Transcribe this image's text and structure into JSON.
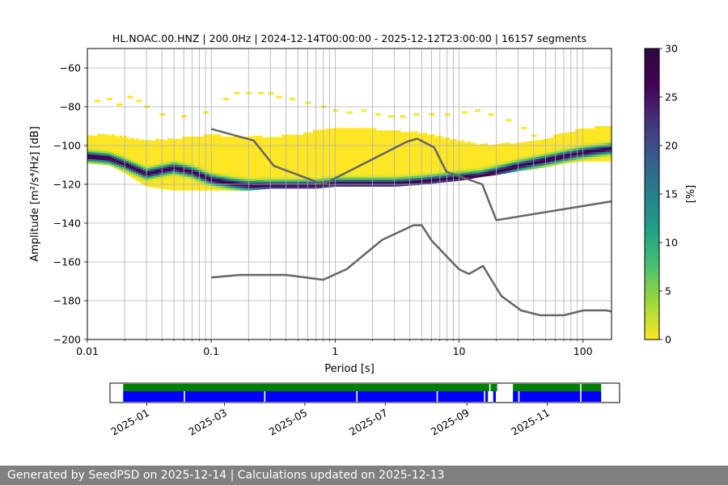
{
  "title": "HL.NOAC.00.HNZ | 200.0Hz | 2024-12-14T00:00:00 - 2025-12-12T23:00:00 | 16157 segments",
  "footer": "Generated by SeedPSD on 2025-12-14 | Calculations updated on 2025-12-13",
  "chart_data": {
    "type": "heatmap",
    "title": "HL.NOAC.00.HNZ | 200.0Hz | 2024-12-14T00:00:00 - 2025-12-12T23:00:00 | 16157 segments",
    "xlabel": "Period [s]",
    "ylabel": "Amplitude [m²/s⁴/Hz] [dB]",
    "xscale": "log",
    "xlim": [
      0.01,
      170
    ],
    "ylim": [
      -200,
      -50
    ],
    "xticks": [
      {
        "value": 0.01,
        "label": "0.01"
      },
      {
        "value": 0.1,
        "label": "0.1"
      },
      {
        "value": 1,
        "label": "1"
      },
      {
        "value": 10,
        "label": "10"
      },
      {
        "value": 100,
        "label": "100"
      }
    ],
    "yticks": [
      {
        "value": -200,
        "label": "−200"
      },
      {
        "value": -180,
        "label": "−180"
      },
      {
        "value": -160,
        "label": "−160"
      },
      {
        "value": -140,
        "label": "−140"
      },
      {
        "value": -120,
        "label": "−120"
      },
      {
        "value": -100,
        "label": "−100"
      },
      {
        "value": -80,
        "label": "−80"
      },
      {
        "value": -60,
        "label": "−60"
      }
    ],
    "colorbar": {
      "label": "[%]",
      "range": [
        0,
        30
      ],
      "colormap": "viridis_r",
      "ticks": [
        {
          "value": 0,
          "label": "0"
        },
        {
          "value": 5,
          "label": "5"
        },
        {
          "value": 10,
          "label": "10"
        },
        {
          "value": 15,
          "label": "15"
        },
        {
          "value": 20,
          "label": "20"
        },
        {
          "value": 25,
          "label": "25"
        },
        {
          "value": 30,
          "label": "30"
        }
      ]
    },
    "psd_envelope": {
      "period": [
        0.01,
        0.015,
        0.02,
        0.03,
        0.05,
        0.07,
        0.1,
        0.15,
        0.2,
        0.3,
        0.5,
        0.7,
        1,
        1.5,
        2,
        3,
        5,
        7,
        10,
        15,
        20,
        30,
        50,
        70,
        100,
        170
      ],
      "upper": [
        -95,
        -95,
        -96,
        -98,
        -97,
        -96,
        -95,
        -96,
        -96,
        -96,
        -95,
        -93,
        -92,
        -92,
        -92,
        -93,
        -94,
        -96,
        -98,
        -100,
        -100,
        -99,
        -97,
        -94,
        -92,
        -90
      ],
      "lower": [
        -109,
        -110,
        -114,
        -121,
        -123,
        -123,
        -123,
        -123,
        -123,
        -122,
        -122,
        -122,
        -121,
        -121,
        -121,
        -121,
        -120,
        -119,
        -118,
        -116,
        -115,
        -113,
        -111,
        -109,
        -108,
        -108
      ],
      "mode": [
        -106,
        -107,
        -110,
        -115,
        -112,
        -114,
        -118,
        -120,
        -121,
        -121,
        -121,
        -121,
        -120,
        -120,
        -120,
        -120,
        -119,
        -118,
        -117,
        -116,
        -114,
        -111,
        -108,
        -106,
        -104,
        -102
      ],
      "mode_percent": 28
    },
    "outliers": {
      "period": [
        0.012,
        0.015,
        0.018,
        0.022,
        0.026,
        0.03,
        0.04,
        0.06,
        0.09,
        0.13,
        0.16,
        0.2,
        0.25,
        0.3,
        0.35,
        0.45,
        0.6,
        0.8,
        1.0,
        1.3,
        1.7,
        2.2,
        2.8,
        3.5,
        4.5,
        6,
        8,
        11,
        14,
        18,
        25,
        33,
        40
      ],
      "level": [
        -77,
        -76,
        -79,
        -75,
        -77,
        -80,
        -84,
        -85,
        -83,
        -76,
        -73,
        -73,
        -73,
        -73,
        -75,
        -76,
        -78,
        -80,
        -82,
        -83,
        -82,
        -84,
        -85,
        -85,
        -84,
        -84,
        -84,
        -83,
        -82,
        -84,
        -87,
        -91,
        -95
      ]
    },
    "series": [
      {
        "name": "NHNM",
        "x": [
          0.1,
          0.22,
          0.32,
          0.8,
          3.8,
          4.6,
          6.3,
          7.9,
          15.4,
          20,
          170
        ],
        "y": [
          -91.5,
          -97.4,
          -110.5,
          -120.0,
          -98.0,
          -96.5,
          -101.0,
          -113.5,
          -120.0,
          -138.5,
          -128.8
        ]
      },
      {
        "name": "NLNM",
        "x": [
          0.1,
          0.17,
          0.4,
          0.8,
          1.24,
          2.4,
          4.3,
          5.0,
          6.0,
          10.0,
          12.0,
          15.6,
          21.9,
          31.6,
          45,
          70,
          101,
          154,
          170
        ],
        "y": [
          -168,
          -166.7,
          -166.7,
          -169.2,
          -163.7,
          -148.6,
          -141.1,
          -141.1,
          -149.0,
          -163.8,
          -166.2,
          -162.1,
          -177.5,
          -185.0,
          -187.5,
          -187.5,
          -185.0,
          -185.0,
          -185.6
        ]
      }
    ]
  },
  "timeline": {
    "start_date": "2024-12-04",
    "end_date": "2025-12-26",
    "ticks": [
      {
        "date": "2025-01-01",
        "label": "2025-01"
      },
      {
        "date": "2025-03-01",
        "label": "2025-03"
      },
      {
        "date": "2025-05-01",
        "label": "2025-05"
      },
      {
        "date": "2025-07-01",
        "label": "2025-07"
      },
      {
        "date": "2025-09-01",
        "label": "2025-09"
      },
      {
        "date": "2025-11-01",
        "label": "2025-11"
      }
    ],
    "coverage_color": "#008000",
    "segments_color": "#0000ff",
    "coverage": [
      [
        "2024-12-14",
        "2025-09-18"
      ],
      [
        "2025-09-19",
        "2025-09-24"
      ],
      [
        "2025-10-06",
        "2025-11-26"
      ],
      [
        "2025-11-27",
        "2025-12-12"
      ]
    ],
    "segments": [
      [
        "2024-12-14",
        "2025-01-29"
      ],
      [
        "2025-01-30",
        "2025-03-31"
      ],
      [
        "2025-04-01",
        "2025-06-09"
      ],
      [
        "2025-06-10",
        "2025-08-09"
      ],
      [
        "2025-08-10",
        "2025-09-14"
      ],
      [
        "2025-09-15",
        "2025-09-17"
      ],
      [
        "2025-09-21",
        "2025-09-23"
      ],
      [
        "2025-10-06",
        "2025-10-10"
      ],
      [
        "2025-10-11",
        "2025-11-26"
      ],
      [
        "2025-11-27",
        "2025-12-12"
      ]
    ]
  }
}
